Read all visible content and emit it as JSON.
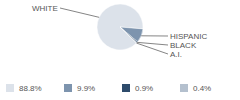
{
  "chart_data": {
    "type": "pie",
    "categories": [
      "WHITE",
      "HISPANIC",
      "BLACK",
      "A.I."
    ],
    "values": [
      88.8,
      9.9,
      0.9,
      0.4
    ],
    "value_labels": [
      "88.8%",
      "9.9%",
      "0.9%",
      "0.4%"
    ],
    "colors": [
      "#dce2ea",
      "#7d94ae",
      "#2d4b6b",
      "#b4c0ce"
    ],
    "legend": "bottom"
  }
}
